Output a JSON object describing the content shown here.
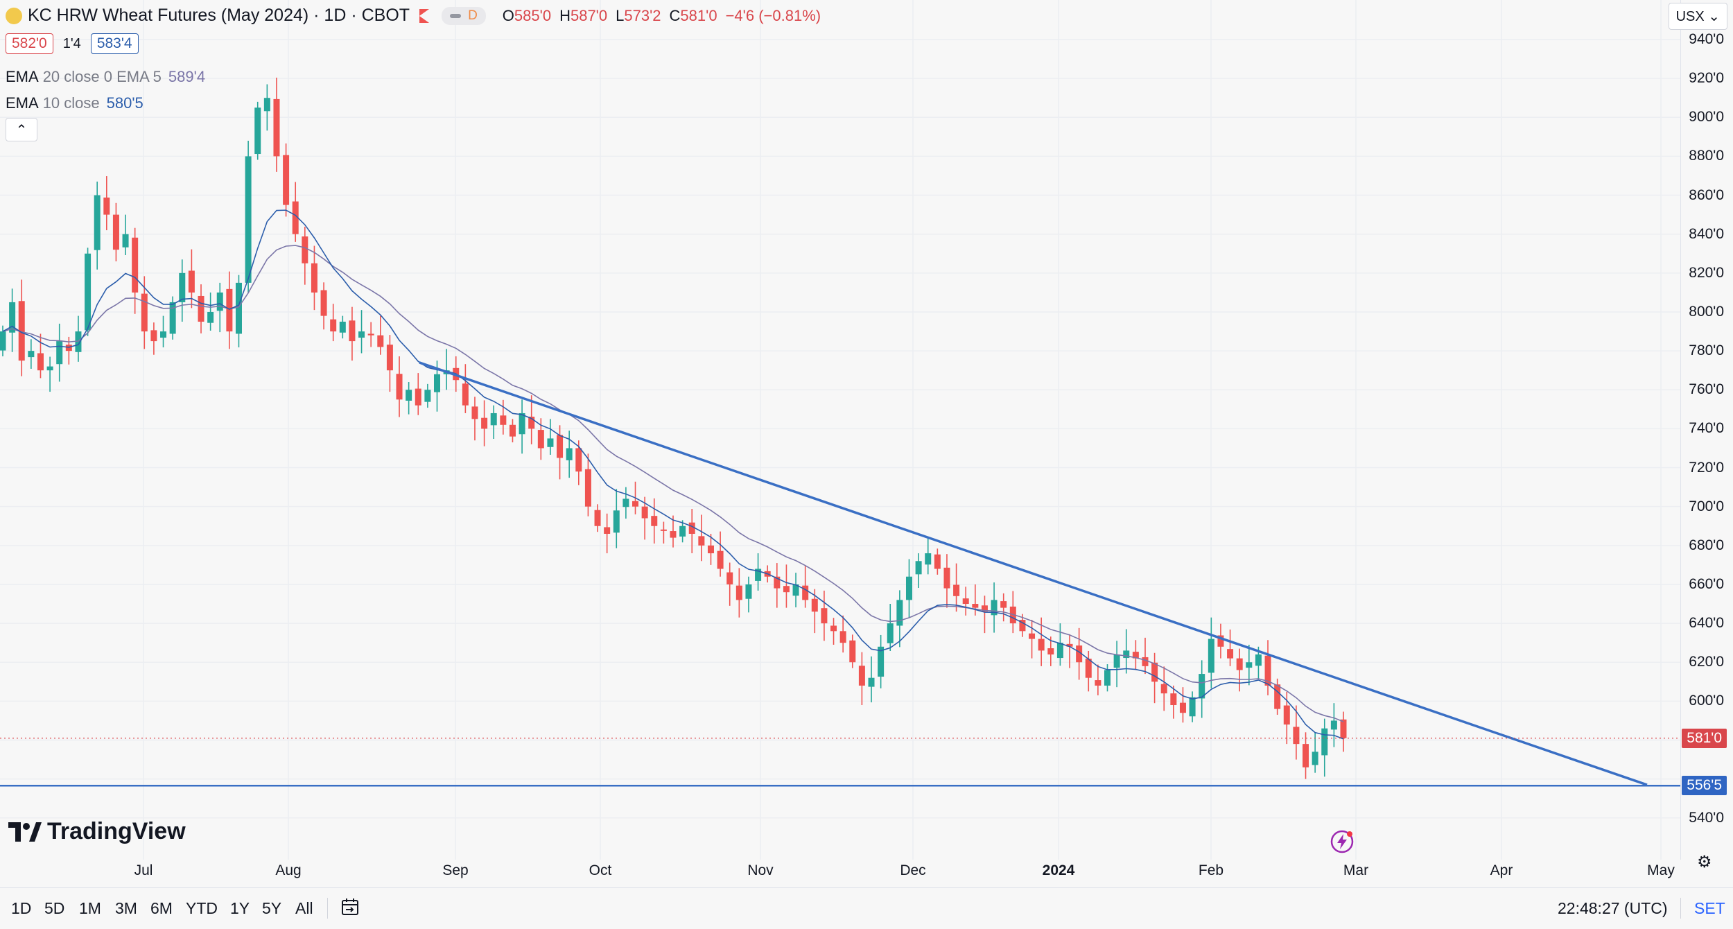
{
  "header": {
    "symbol_title": "KC HRW Wheat Futures (May 2024) · 1D · CBOT",
    "interval_badge": "D",
    "ohlc": {
      "open_label": "O",
      "open": "585'0",
      "high_label": "H",
      "high": "587'0",
      "low_label": "L",
      "low": "573'2",
      "close_label": "C",
      "close": "581'0",
      "change": "−4'6 (−0.81%)"
    },
    "sell_price": "582'0",
    "spread": "1'4",
    "buy_price": "583'4",
    "currency": "USX ⌄"
  },
  "indicators": [
    {
      "name": "EMA",
      "params": "20 close 0 EMA 5",
      "value": "589'4",
      "color": "#7b76a8"
    },
    {
      "name": "EMA",
      "params": "10 close",
      "value": "580'5",
      "color": "#2b5dab"
    }
  ],
  "collapse_icon": "chevron-up-icon",
  "price_axis": {
    "ticks": [
      "940'0",
      "920'0",
      "900'0",
      "880'0",
      "860'0",
      "840'0",
      "820'0",
      "800'0",
      "780'0",
      "760'0",
      "740'0",
      "720'0",
      "700'0",
      "680'0",
      "660'0",
      "640'0",
      "620'0",
      "600'0",
      "540'0"
    ],
    "last_price_tag": "581'0",
    "last_price_color": "#d9464b",
    "line_tag": "556'5",
    "line_color": "#2f65c3"
  },
  "time_axis": {
    "labels": [
      "Jul",
      "Aug",
      "Sep",
      "Oct",
      "Nov",
      "Dec",
      "2024",
      "Feb",
      "Mar",
      "Apr",
      "May"
    ]
  },
  "bottom_bar": {
    "ranges": [
      "1D",
      "5D",
      "1M",
      "3M",
      "6M",
      "YTD",
      "1Y",
      "5Y",
      "All"
    ],
    "calendar_icon": "calendar-range-icon",
    "clock": "22:48:27 (UTC)",
    "session": "SET",
    "settings_icon": "gear-icon"
  },
  "logo_text": "TradingView",
  "colors": {
    "up": "#26a69a",
    "down": "#ef5350",
    "trendline": "#3a6fc4",
    "ema_fast": "#2b5dab",
    "ema_slow": "#7b76a8"
  },
  "chart_data": {
    "type": "candlestick",
    "instrument": "KC HRW Wheat Futures (May 2024)",
    "interval": "1D",
    "ylim": [
      530,
      950
    ],
    "months": [
      "Jul",
      "Aug",
      "Sep",
      "Oct",
      "Nov",
      "Dec",
      "2024",
      "Feb",
      "Mar",
      "Apr",
      "May"
    ],
    "closes": [
      790,
      805,
      775,
      780,
      770,
      772,
      785,
      780,
      790,
      830,
      860,
      850,
      832,
      840,
      810,
      790,
      785,
      790,
      805,
      820,
      810,
      795,
      800,
      810,
      790,
      815,
      880,
      905,
      910,
      880,
      855,
      840,
      825,
      810,
      798,
      790,
      795,
      785,
      790,
      788,
      782,
      770,
      755,
      760,
      752,
      760,
      768,
      770,
      765,
      752,
      745,
      740,
      748,
      742,
      736,
      748,
      740,
      730,
      735,
      725,
      730,
      718,
      700,
      690,
      686,
      698,
      704,
      700,
      694,
      690,
      688,
      684,
      690,
      686,
      680,
      676,
      668,
      660,
      652,
      660,
      668,
      664,
      658,
      656,
      660,
      652,
      646,
      640,
      636,
      630,
      620,
      608,
      612,
      628,
      640,
      652,
      664,
      672,
      676,
      668,
      658,
      654,
      650,
      648,
      646,
      652,
      648,
      640,
      636,
      632,
      626,
      624,
      630,
      628,
      620,
      612,
      608,
      616,
      624,
      626,
      622,
      618,
      610,
      604,
      598,
      594,
      602,
      614,
      632,
      628,
      622,
      616,
      620,
      624,
      608,
      596,
      588,
      578,
      566,
      574,
      586,
      590,
      581
    ],
    "ema_fast_last": 580.6,
    "ema_slow_last": 589.5,
    "trendline": {
      "from": [
        "2023-08-24",
        774
      ],
      "to": [
        "2024-04-25",
        557
      ]
    },
    "support_line": 556.6,
    "last_price": 581
  }
}
